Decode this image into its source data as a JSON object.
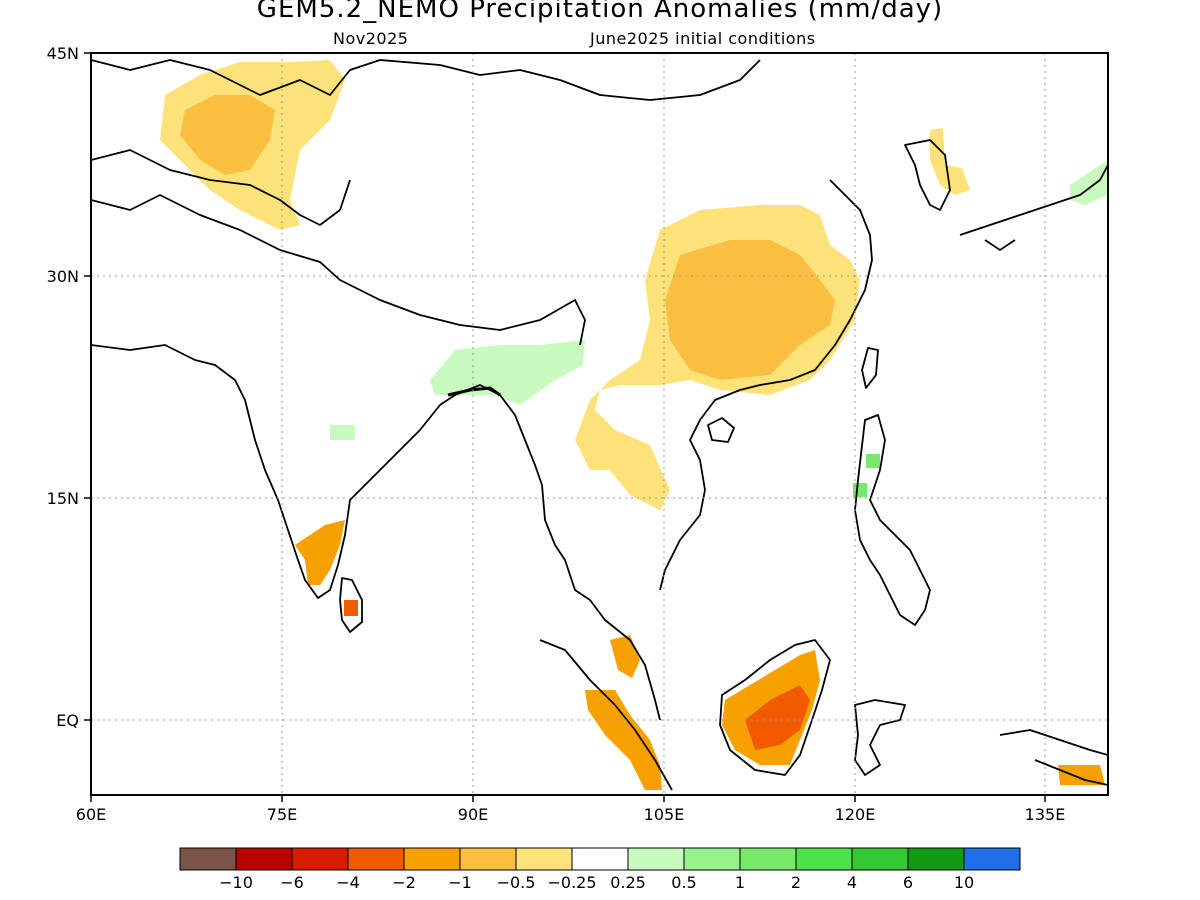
{
  "title": "GEM5.2_NEMO Precipitation Anomalies (mm/day)",
  "subtitle_left": "Nov2025",
  "subtitle_right": "June2025 initial conditions",
  "map": {
    "lon_range": [
      60,
      140
    ],
    "lat_range": [
      -5,
      45
    ],
    "x_ticks": [
      "60E",
      "75E",
      "90E",
      "105E",
      "120E",
      "135E"
    ],
    "y_ticks": [
      "45N",
      "30N",
      "15N",
      "EQ"
    ],
    "grid": "dotted"
  },
  "colorbar": {
    "labels": [
      "−10",
      "−6",
      "−4",
      "−2",
      "−1",
      "−0.5",
      "−0.25",
      "0.25",
      "0.5",
      "1",
      "2",
      "4",
      "6",
      "10"
    ],
    "colors": [
      "#7a5446",
      "#b80000",
      "#d81a00",
      "#f25a00",
      "#f8a000",
      "#fabf40",
      "#fde27a",
      "#ffffff",
      "#c8fac0",
      "#96f28a",
      "#78ea6a",
      "#4ee24a",
      "#34c832",
      "#129a10",
      "#1f6ee8"
    ]
  },
  "anomaly_regions": [
    {
      "name": "central-asia-dry",
      "class": "-0.5..-0.25",
      "color": "#fde27a"
    },
    {
      "name": "central-asia-dry-core",
      "class": "-1..-0.5",
      "color": "#fabf40"
    },
    {
      "name": "south-china-dry",
      "class": "-0.5..-0.25",
      "color": "#fde27a"
    },
    {
      "name": "south-china-dry-core",
      "class": "-1..-0.5",
      "color": "#fabf40"
    },
    {
      "name": "borneo-dry",
      "class": "-2..-1",
      "color": "#f8a000"
    },
    {
      "name": "borneo-dry-core",
      "class": "-4..-2",
      "color": "#f25a00"
    },
    {
      "name": "sumatra-dry",
      "class": "-2..-1",
      "color": "#f8a000"
    },
    {
      "name": "sri-lanka-dry",
      "class": "-4..-2",
      "color": "#f25a00"
    },
    {
      "name": "northeast-india-wet",
      "class": "0.25..0.5",
      "color": "#c8fac0"
    },
    {
      "name": "philippines-wet",
      "class": "1..2",
      "color": "#78ea6a"
    }
  ]
}
